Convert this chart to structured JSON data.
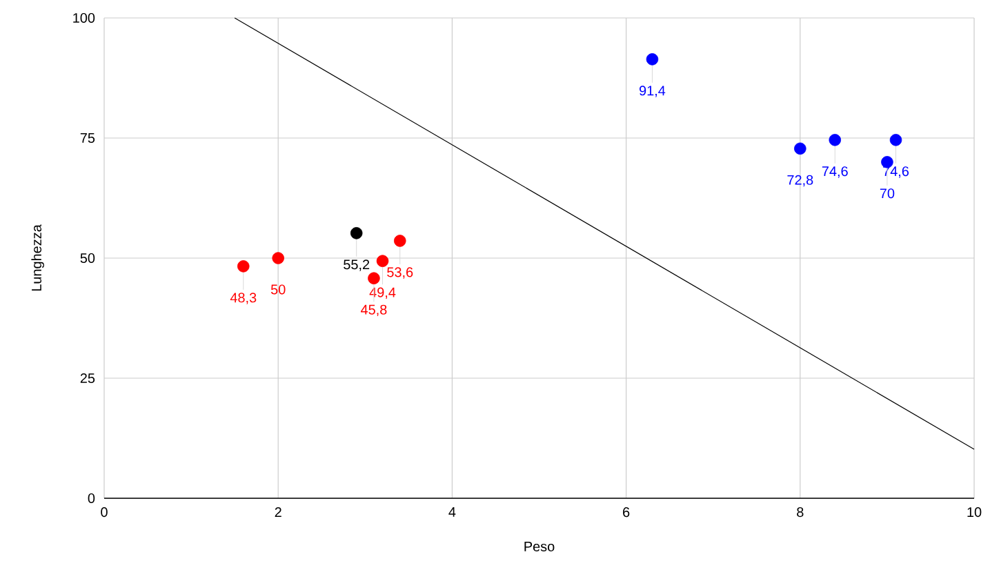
{
  "chart_data": {
    "type": "scatter",
    "xlabel": "Peso",
    "ylabel": "Lunghezza",
    "xlim": [
      0,
      10
    ],
    "ylim": [
      0,
      100
    ],
    "xticks": [
      0,
      2,
      4,
      6,
      8,
      10
    ],
    "yticks": [
      0,
      25,
      50,
      75,
      100
    ],
    "grid": true,
    "marker": "circle",
    "series": [
      {
        "color": "#ff0000",
        "x": [
          1.6,
          2,
          3.2,
          3.1,
          3.4
        ],
        "values": [
          48.3,
          50,
          49.4,
          45.8,
          53.6
        ],
        "value_labels": [
          "48,3",
          "50",
          "49,4",
          "45,8",
          "53,6"
        ]
      },
      {
        "color": "#000000",
        "x": [
          2.9
        ],
        "values": [
          55.2
        ],
        "value_labels": [
          "55,2"
        ]
      },
      {
        "color": "#0000ff",
        "x": [
          6.3,
          8,
          8.4,
          9.1,
          9
        ],
        "values": [
          91.4,
          72.8,
          74.6,
          74.6,
          70
        ],
        "value_labels": [
          "91,4",
          "72,8",
          "74,6",
          "74,6",
          "70"
        ]
      },
      {
        "type": "line",
        "color": "#000000",
        "marker": "none",
        "line_style": "solid",
        "x": [
          1.5,
          10
        ],
        "values": [
          100,
          10.2
        ]
      }
    ]
  }
}
